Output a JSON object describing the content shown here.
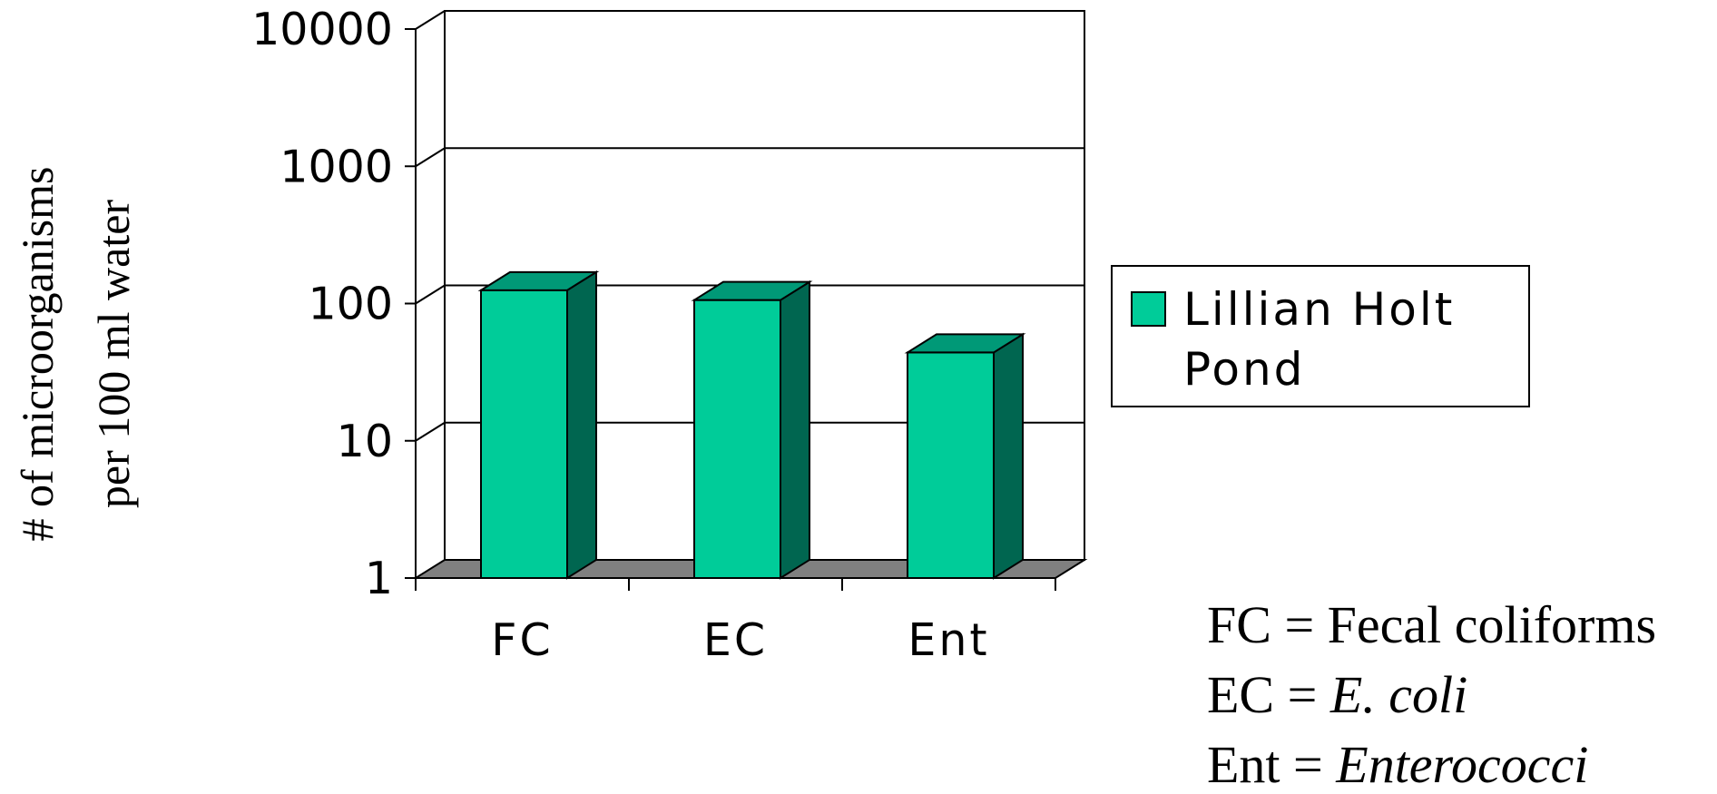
{
  "chart_data": {
    "type": "bar",
    "ylabel_lines": [
      "# of microorganisms",
      "per 100 ml water"
    ],
    "yscale": "log",
    "ylim": [
      1,
      10000
    ],
    "yticks": [
      "1",
      "10",
      "100",
      "1000",
      "10000"
    ],
    "categories": [
      "FC",
      "EC",
      "Ent"
    ],
    "series": [
      {
        "name": "Lillian Holt Pond",
        "values": [
          125,
          106,
          44
        ],
        "color": "#00cc99",
        "side_color": "#006650",
        "top_color": "#009977"
      }
    ],
    "legend": {
      "position": "right",
      "lines": [
        "Lillian Holt",
        "Pond"
      ]
    },
    "grid": true,
    "floor_color": "#808080"
  },
  "notes": [
    {
      "abbr": "FC",
      "eq": " = ",
      "text": "Fecal coliforms",
      "italic": false
    },
    {
      "abbr": "EC",
      "eq": " = ",
      "text": "E. coli",
      "italic": true
    },
    {
      "abbr": "Ent",
      "eq": " = ",
      "text": "Enterococci",
      "italic": true
    }
  ]
}
